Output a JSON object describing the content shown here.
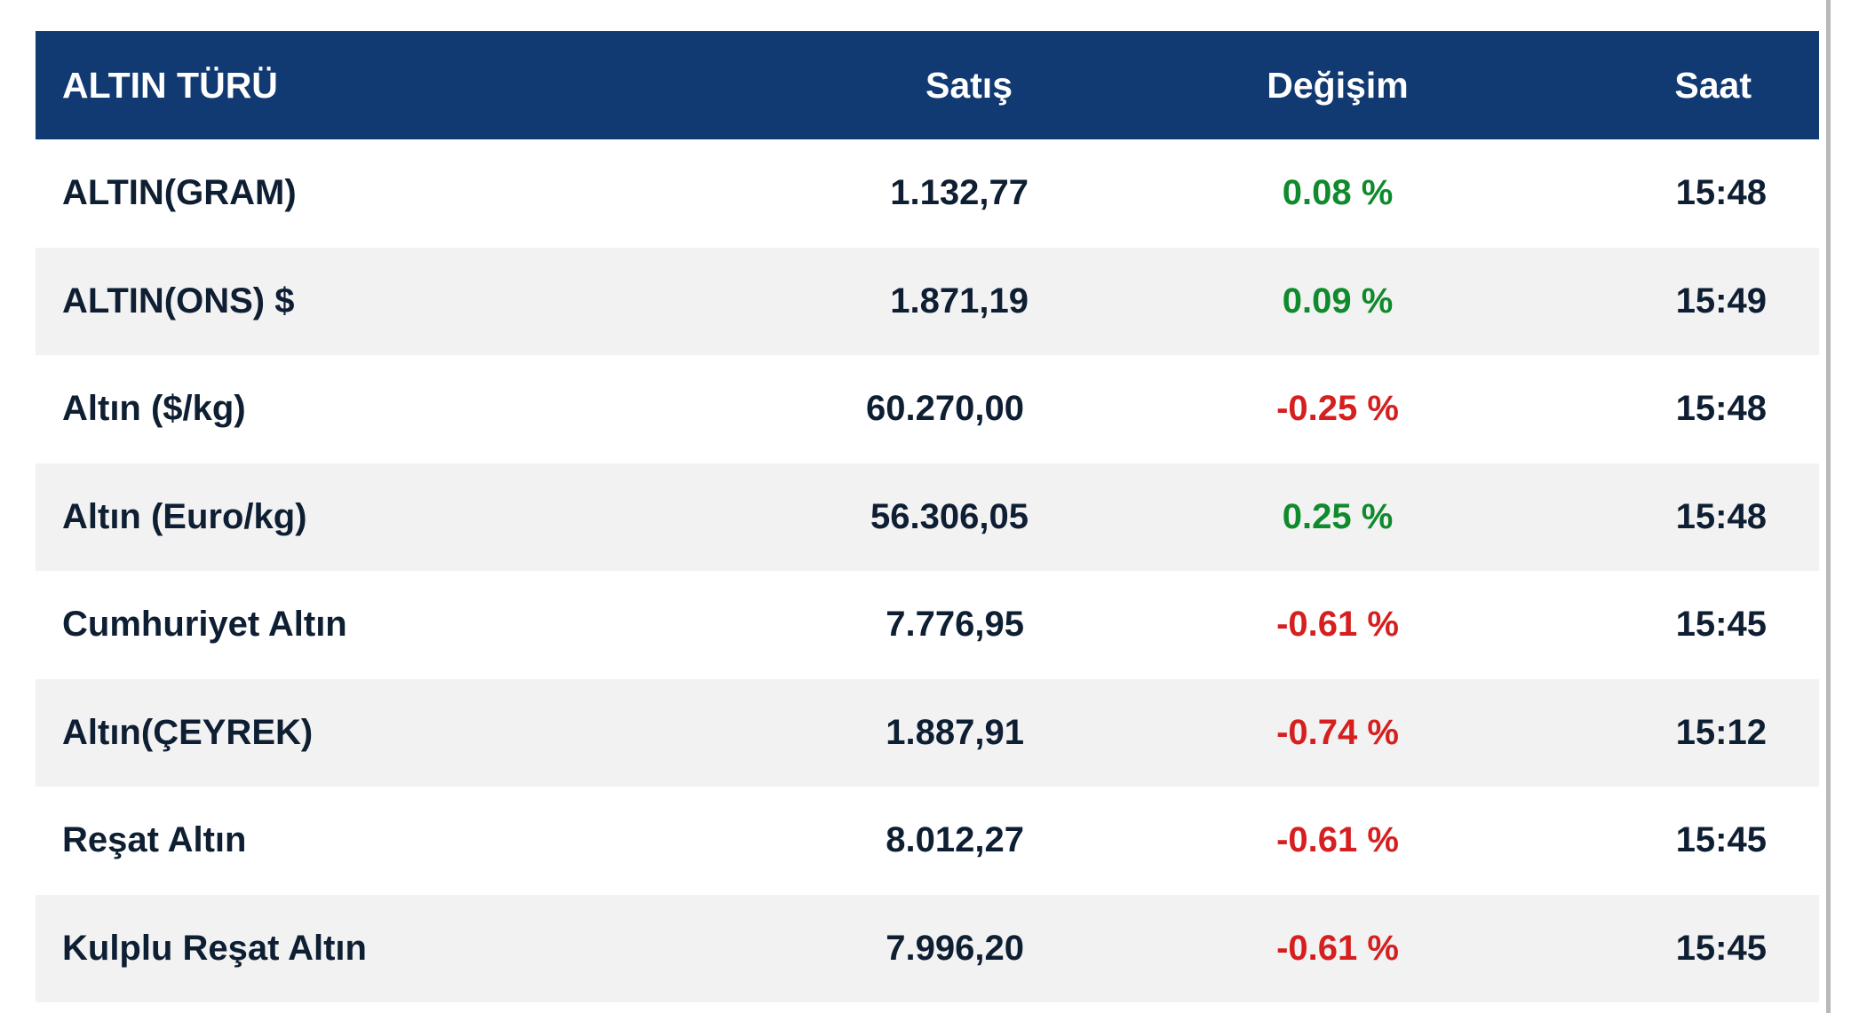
{
  "table": {
    "headers": {
      "name": "ALTIN TÜRÜ",
      "price": "Satış",
      "change": "Değişim",
      "time": "Saat"
    },
    "rows": [
      {
        "name": "ALTIN(GRAM)",
        "price": "1.132,77",
        "change": "0.08 %",
        "direction": "up",
        "time": "15:48"
      },
      {
        "name": "ALTIN(ONS) $",
        "price": "1.871,19",
        "change": "0.09 %",
        "direction": "up",
        "time": "15:49"
      },
      {
        "name": "Altın ($/kg)",
        "price": "60.270,00",
        "change": "-0.25 %",
        "direction": "down",
        "time": "15:48"
      },
      {
        "name": "Altın (Euro/kg)",
        "price": "56.306,05",
        "change": "0.25 %",
        "direction": "up",
        "time": "15:48"
      },
      {
        "name": "Cumhuriyet Altın",
        "price": "7.776,95",
        "change": "-0.61 %",
        "direction": "down",
        "time": "15:45"
      },
      {
        "name": "Altın(ÇEYREK)",
        "price": "1.887,91",
        "change": "-0.74 %",
        "direction": "down",
        "time": "15:12"
      },
      {
        "name": "Reşat Altın",
        "price": "8.012,27",
        "change": "-0.61 %",
        "direction": "down",
        "time": "15:45"
      },
      {
        "name": "Kulplu Reşat Altın",
        "price": "7.996,20",
        "change": "-0.61 %",
        "direction": "down",
        "time": "15:45"
      }
    ]
  },
  "colors": {
    "header_bg": "#123a72",
    "positive": "#0f8a2c",
    "negative": "#d61f1f",
    "row_alt_bg": "#f2f2f2"
  }
}
